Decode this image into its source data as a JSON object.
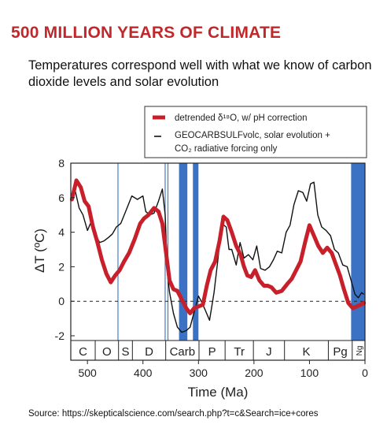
{
  "heading": {
    "title": "500 MILLION YEARS OF CLIMATE",
    "subtitle": "Temperatures correspond well with what we know of carbon dioxide levels and solar evolution"
  },
  "source_text": "Source:  https://skepticalscience.com/search.php?t=c&Search=ice+cores",
  "colors": {
    "red_series": "#c8202a",
    "black_series": "#111111",
    "bands": "#3b72c4",
    "thin_lines": "#4a7ac8"
  },
  "chart_data": {
    "type": "line",
    "title": "",
    "xlabel": "Time (Ma)",
    "ylabel": "ΔT (ºC)",
    "xlim": [
      530,
      0
    ],
    "ylim": [
      -2,
      8
    ],
    "x_ticks": [
      500,
      400,
      300,
      200,
      100,
      0
    ],
    "y_ticks": [
      -2,
      0,
      2,
      4,
      6,
      8
    ],
    "grid": false,
    "legend_position": "top-right",
    "zero_reference_line": {
      "y": 0,
      "style": "dashed"
    },
    "legend": {
      "red": "detrended δ¹⁸O, w/ pH correction",
      "black_line1": "GEOCARBSULFvolc, solar evolution +",
      "black_line2": "CO₂ radiative forcing only"
    },
    "periods": [
      {
        "label": "C",
        "start": 530,
        "end": 486
      },
      {
        "label": "O",
        "start": 486,
        "end": 444
      },
      {
        "label": "S",
        "start": 444,
        "end": 419
      },
      {
        "label": "D",
        "start": 419,
        "end": 359
      },
      {
        "label": "Carb",
        "start": 359,
        "end": 299
      },
      {
        "label": "P",
        "start": 299,
        "end": 252
      },
      {
        "label": "Tr",
        "start": 252,
        "end": 201
      },
      {
        "label": "J",
        "start": 201,
        "end": 145
      },
      {
        "label": "K",
        "start": 145,
        "end": 66
      },
      {
        "label": "Pg",
        "start": 66,
        "end": 23
      },
      {
        "label": "Ng",
        "start": 23,
        "end": 0
      }
    ],
    "glacial_lines": [
      445,
      360,
      355
    ],
    "glacial_bands": [
      [
        335,
        320
      ],
      [
        310,
        300
      ],
      [
        25,
        0
      ]
    ],
    "series": [
      {
        "name": "detrended δ¹⁸O, w/ pH correction",
        "x": [
          528,
          520,
          512,
          505,
          498,
          490,
          482,
          474,
          466,
          458,
          450,
          442,
          434,
          425,
          415,
          405,
          398,
          390,
          380,
          372,
          365,
          360,
          352,
          345,
          338,
          330,
          322,
          315,
          308,
          300,
          292,
          285,
          278,
          270,
          262,
          255,
          248,
          240,
          232,
          224,
          218,
          212,
          205,
          198,
          190,
          182,
          175,
          168,
          160,
          150,
          140,
          132,
          124,
          116,
          108,
          100,
          92,
          84,
          76,
          68,
          60,
          52,
          45,
          38,
          30,
          22,
          15,
          8,
          2
        ],
        "y": [
          5.9,
          7.0,
          6.6,
          5.8,
          5.5,
          4.3,
          3.4,
          2.4,
          1.6,
          1.1,
          1.5,
          1.8,
          2.3,
          2.8,
          3.6,
          4.5,
          4.8,
          5.0,
          5.4,
          5.2,
          4.5,
          3.2,
          1.2,
          0.7,
          0.6,
          0.1,
          -0.4,
          -0.7,
          -0.4,
          -0.3,
          -0.2,
          0.9,
          1.8,
          2.3,
          3.5,
          4.9,
          4.7,
          4.0,
          3.2,
          2.7,
          2.0,
          1.5,
          1.4,
          1.8,
          1.2,
          0.9,
          0.9,
          0.8,
          0.5,
          0.6,
          1.0,
          1.3,
          1.8,
          2.3,
          3.4,
          4.4,
          3.8,
          3.2,
          2.8,
          3.1,
          2.8,
          2.1,
          1.5,
          0.7,
          -0.1,
          -0.4,
          -0.3,
          -0.2,
          -0.1
        ]
      },
      {
        "name": "GEOCARBSULFvolc, solar evolution + CO₂ radiative forcing only",
        "x": [
          528,
          522,
          515,
          508,
          500,
          492,
          486,
          478,
          470,
          462,
          455,
          448,
          440,
          430,
          420,
          410,
          400,
          395,
          388,
          380,
          372,
          365,
          360,
          356,
          352,
          345,
          338,
          330,
          322,
          315,
          310,
          305,
          300,
          295,
          288,
          280,
          272,
          265,
          258,
          250,
          245,
          240,
          232,
          225,
          218,
          210,
          202,
          195,
          188,
          180,
          172,
          165,
          158,
          150,
          142,
          135,
          128,
          120,
          112,
          105,
          98,
          92,
          85,
          78,
          70,
          62,
          55,
          48,
          40,
          32,
          25,
          18,
          12,
          6,
          2
        ],
        "y": [
          6.0,
          6.4,
          5.4,
          5.0,
          4.1,
          4.7,
          3.9,
          3.4,
          3.5,
          3.7,
          3.9,
          4.3,
          4.5,
          5.3,
          6.1,
          5.9,
          6.1,
          5.2,
          5.0,
          5.1,
          5.8,
          6.5,
          5.0,
          1.6,
          0.5,
          -0.7,
          -1.5,
          -1.8,
          -1.7,
          -1.5,
          -0.9,
          -0.3,
          0.3,
          0.0,
          -0.5,
          -1.1,
          0.5,
          2.4,
          4.5,
          4.3,
          3.0,
          3.0,
          2.1,
          3.4,
          2.5,
          2.7,
          2.4,
          3.2,
          1.9,
          1.8,
          2.0,
          2.4,
          2.9,
          2.8,
          4.0,
          4.4,
          5.6,
          6.4,
          6.3,
          5.8,
          6.8,
          6.9,
          5.0,
          4.3,
          4.1,
          3.8,
          3.0,
          2.8,
          2.1,
          2.0,
          1.2,
          0.4,
          0.2,
          0.5,
          0.4
        ]
      }
    ]
  }
}
